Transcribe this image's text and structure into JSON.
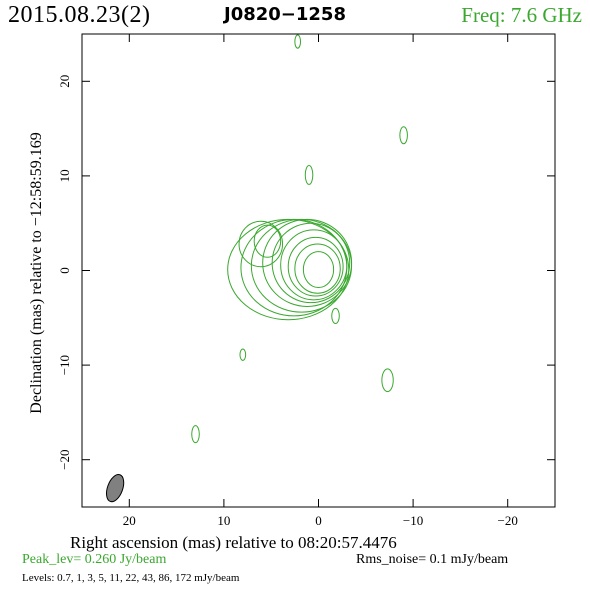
{
  "header": {
    "date": "2015.08.23(2)",
    "source": "J0820−1258",
    "freq": "Freq: 7.6 GHz"
  },
  "footer": {
    "peak_label": "Peak_lev=",
    "peak_value": "0.260 Jy/beam",
    "rms_label": "Rms_noise=",
    "rms_value": "0.1 mJy/beam",
    "levels": "Levels: 0.7,    1,    3,    5,   11,   22,   43,   86, 172 mJy/beam"
  },
  "colors": {
    "contour": "#3aa82f",
    "beam": "#808080",
    "axes": "#000000"
  },
  "chart_data": {
    "type": "contour",
    "xlabel": "Right ascension (mas) relative to 08:20:57.4476",
    "ylabel": "Declination (mas) relative to −12:58:59.169",
    "xlim": [
      25,
      -25
    ],
    "ylim": [
      -25,
      25
    ],
    "xticks": [
      20,
      10,
      0,
      -10,
      -20
    ],
    "xtick_labels": [
      "20",
      "10",
      "0",
      "−10",
      "−20"
    ],
    "yticks": [
      20,
      10,
      0,
      -10,
      -20
    ],
    "ytick_labels": [
      "20",
      "10",
      "0",
      "−10",
      "−20"
    ],
    "contour_levels_mJy": [
      0.7,
      1,
      3,
      5,
      11,
      22,
      43,
      86,
      172
    ],
    "peak": {
      "x": 0.0,
      "y": 0.0,
      "value_Jy_per_beam": 0.26
    },
    "beam": {
      "x": 21.5,
      "y": -23.0,
      "major_mas": 3.0,
      "minor_mas": 1.6,
      "pa_deg": 20
    },
    "components": [
      {
        "x": 0.0,
        "y": 0.1,
        "rx": 1.6,
        "ry": 1.9
      },
      {
        "x": 0.1,
        "y": 0.2,
        "rx": 2.4,
        "ry": 2.6
      },
      {
        "x": 0.3,
        "y": 0.4,
        "rx": 2.9,
        "ry": 3.1
      },
      {
        "x": 0.5,
        "y": 0.6,
        "rx": 3.5,
        "ry": 3.7
      },
      {
        "x": 0.8,
        "y": 0.8,
        "rx": 4.1,
        "ry": 4.2
      },
      {
        "x": 1.2,
        "y": 0.8,
        "rx": 4.7,
        "ry": 4.6
      },
      {
        "x": 1.8,
        "y": 0.5,
        "rx": 5.3,
        "ry": 4.9
      },
      {
        "x": 2.6,
        "y": 0.3,
        "rx": 5.6,
        "ry": 5.1
      },
      {
        "x": 3.2,
        "y": 0.1,
        "rx": 6.4,
        "ry": 5.3
      },
      {
        "x": 5.4,
        "y": 3.1,
        "rx": 1.4,
        "ry": 1.7
      },
      {
        "x": 6.1,
        "y": 2.8,
        "rx": 2.3,
        "ry": 2.4
      },
      {
        "x": 8.0,
        "y": -8.9,
        "rx": 0.3,
        "ry": 0.6
      },
      {
        "x": 13.0,
        "y": -17.3,
        "rx": 0.4,
        "ry": 0.9
      },
      {
        "x": 1.0,
        "y": 10.1,
        "rx": 0.4,
        "ry": 1.0
      },
      {
        "x": -9.0,
        "y": 14.3,
        "rx": 0.4,
        "ry": 0.9
      },
      {
        "x": 2.2,
        "y": 24.2,
        "rx": 0.3,
        "ry": 0.7
      },
      {
        "x": -1.8,
        "y": -4.8,
        "rx": 0.4,
        "ry": 0.8
      },
      {
        "x": -7.3,
        "y": -11.6,
        "rx": 0.6,
        "ry": 1.2
      }
    ]
  }
}
